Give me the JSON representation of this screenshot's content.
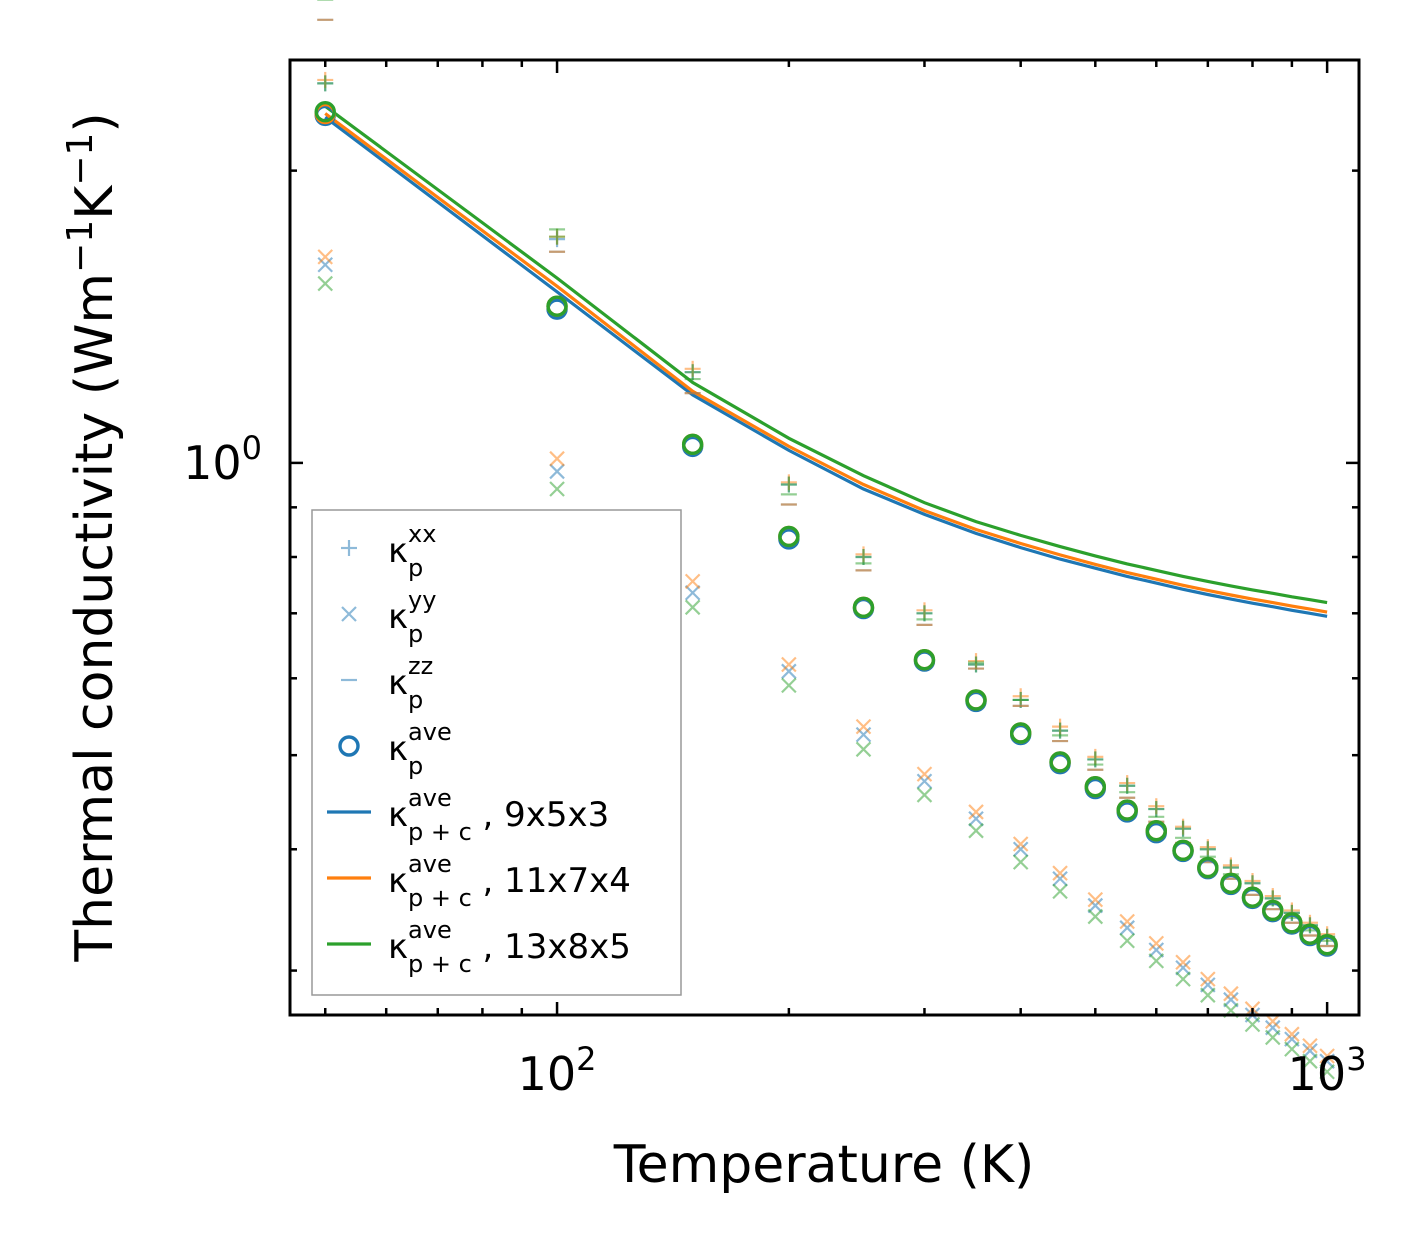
{
  "chart_data": {
    "type": "scatter",
    "scale": {
      "x": "log",
      "y": "log"
    },
    "xlim": [
      45,
      1100
    ],
    "ylim": [
      0.27,
      2.6
    ],
    "xlabel": "Temperature (K)",
    "ylabel_text": "Thermal conductivity (Wm",
    "ylabel_sup1": "−1",
    "ylabel_mid": "K",
    "ylabel_sup2": "−1",
    "ylabel_close": ")",
    "x_ticks": [
      {
        "base": "10",
        "exp": "2",
        "value": 100
      },
      {
        "base": "10",
        "exp": "3",
        "value": 1000
      }
    ],
    "y_ticks": [
      {
        "base": "10",
        "exp": "0",
        "value": 1
      }
    ],
    "colors": {
      "blue": "#1f77b4",
      "orange": "#ff7f0e",
      "green": "#2ca02c"
    },
    "x": [
      50,
      100,
      150,
      200,
      250,
      300,
      350,
      400,
      450,
      500,
      550,
      600,
      650,
      700,
      750,
      800,
      850,
      900,
      950,
      1000
    ],
    "point_series": [
      {
        "kind": "xx",
        "color": "blue",
        "values": [
          2.46,
          1.7,
          1.24,
          0.95,
          0.8,
          0.7,
          0.62,
          0.57,
          0.53,
          0.495,
          0.465,
          0.44,
          0.42,
          0.4,
          0.383,
          0.369,
          0.356,
          0.344,
          0.334,
          0.325
        ]
      },
      {
        "kind": "xx",
        "color": "orange",
        "values": [
          2.48,
          1.71,
          1.25,
          0.955,
          0.805,
          0.705,
          0.625,
          0.575,
          0.535,
          0.498,
          0.468,
          0.443,
          0.422,
          0.402,
          0.385,
          0.371,
          0.358,
          0.346,
          0.336,
          0.327
        ]
      },
      {
        "kind": "xx",
        "color": "green",
        "values": [
          2.46,
          1.71,
          1.24,
          0.95,
          0.8,
          0.7,
          0.62,
          0.57,
          0.53,
          0.495,
          0.465,
          0.44,
          0.42,
          0.4,
          0.383,
          0.369,
          0.356,
          0.344,
          0.334,
          0.325
        ]
      },
      {
        "kind": "yy",
        "color": "blue",
        "values": [
          1.6,
          0.98,
          0.735,
          0.61,
          0.525,
          0.47,
          0.43,
          0.4,
          0.373,
          0.35,
          0.332,
          0.315,
          0.302,
          0.29,
          0.28,
          0.27,
          0.262,
          0.255,
          0.248,
          0.242
        ]
      },
      {
        "kind": "yy",
        "color": "orange",
        "values": [
          1.63,
          1.01,
          0.755,
          0.62,
          0.535,
          0.478,
          0.437,
          0.405,
          0.378,
          0.355,
          0.337,
          0.32,
          0.306,
          0.294,
          0.284,
          0.274,
          0.266,
          0.258,
          0.251,
          0.245
        ]
      },
      {
        "kind": "yy",
        "color": "green",
        "values": [
          1.53,
          0.94,
          0.71,
          0.59,
          0.507,
          0.455,
          0.418,
          0.388,
          0.362,
          0.341,
          0.322,
          0.307,
          0.294,
          0.283,
          0.273,
          0.264,
          0.256,
          0.249,
          0.242,
          0.236
        ]
      },
      {
        "kind": "zz",
        "color": "blue",
        "values": [
          2.86,
          1.65,
          1.18,
          0.906,
          0.775,
          0.681,
          0.614,
          0.562,
          0.517,
          0.483,
          0.452,
          0.427,
          0.406,
          0.388,
          0.373,
          0.359,
          0.347,
          0.336,
          0.326,
          0.318
        ]
      },
      {
        "kind": "zz",
        "color": "orange",
        "values": [
          2.86,
          1.65,
          1.18,
          0.906,
          0.775,
          0.681,
          0.614,
          0.562,
          0.517,
          0.483,
          0.452,
          0.427,
          0.406,
          0.388,
          0.373,
          0.359,
          0.347,
          0.336,
          0.326,
          0.318
        ]
      },
      {
        "kind": "zz",
        "color": "green",
        "values": [
          3.0,
          1.74,
          1.22,
          0.928,
          0.788,
          0.69,
          0.623,
          0.57,
          0.524,
          0.489,
          0.458,
          0.432,
          0.411,
          0.393,
          0.377,
          0.363,
          0.351,
          0.34,
          0.33,
          0.322
        ]
      },
      {
        "kind": "ave",
        "color": "blue",
        "values": [
          2.28,
          1.44,
          1.04,
          0.835,
          0.708,
          0.625,
          0.568,
          0.525,
          0.49,
          0.462,
          0.437,
          0.416,
          0.398,
          0.382,
          0.368,
          0.356,
          0.345,
          0.335,
          0.326,
          0.318
        ]
      },
      {
        "kind": "ave",
        "color": "orange",
        "values": [
          2.29,
          1.45,
          1.045,
          0.84,
          0.71,
          0.627,
          0.57,
          0.527,
          0.492,
          0.464,
          0.439,
          0.418,
          0.399,
          0.383,
          0.369,
          0.357,
          0.346,
          0.336,
          0.327,
          0.319
        ]
      },
      {
        "kind": "ave",
        "color": "green",
        "values": [
          2.3,
          1.45,
          1.045,
          0.84,
          0.71,
          0.627,
          0.57,
          0.527,
          0.492,
          0.464,
          0.439,
          0.418,
          0.399,
          0.383,
          0.369,
          0.357,
          0.346,
          0.336,
          0.327,
          0.319
        ]
      }
    ],
    "line_series": [
      {
        "name": "9x5x3",
        "color": "blue",
        "values": [
          2.27,
          1.5,
          1.175,
          1.03,
          0.94,
          0.885,
          0.846,
          0.818,
          0.796,
          0.779,
          0.764,
          0.752,
          0.741,
          0.732,
          0.724,
          0.717,
          0.711,
          0.705,
          0.7,
          0.695
        ]
      },
      {
        "name": "11x7x4",
        "color": "orange",
        "values": [
          2.29,
          1.52,
          1.185,
          1.04,
          0.95,
          0.893,
          0.854,
          0.826,
          0.804,
          0.786,
          0.771,
          0.759,
          0.748,
          0.739,
          0.731,
          0.724,
          0.718,
          0.712,
          0.707,
          0.702
        ]
      },
      {
        "name": "13x8x5",
        "color": "green",
        "values": [
          2.33,
          1.55,
          1.21,
          1.06,
          0.97,
          0.91,
          0.87,
          0.842,
          0.82,
          0.802,
          0.787,
          0.775,
          0.764,
          0.755,
          0.747,
          0.74,
          0.734,
          0.728,
          0.723,
          0.718
        ]
      }
    ],
    "legend": {
      "position": "lower-left",
      "entries": [
        {
          "marker": "plus",
          "color": "blue",
          "base": "κ",
          "sub": "p",
          "sup": "xx",
          "suffix": ""
        },
        {
          "marker": "cross",
          "color": "blue",
          "base": "κ",
          "sub": "p",
          "sup": "yy",
          "suffix": ""
        },
        {
          "marker": "dash",
          "color": "blue",
          "base": "κ",
          "sub": "p",
          "sup": "zz",
          "suffix": ""
        },
        {
          "marker": "circle",
          "color": "blue",
          "base": "κ",
          "sub": "p",
          "sup": "ave",
          "suffix": ""
        },
        {
          "marker": "line",
          "color": "blue",
          "base": "κ",
          "sub": "p + c",
          "sup": "ave",
          "suffix": ", 9x5x3"
        },
        {
          "marker": "line",
          "color": "orange",
          "base": "κ",
          "sub": "p + c",
          "sup": "ave",
          "suffix": ", 11x7x4"
        },
        {
          "marker": "line",
          "color": "green",
          "base": "κ",
          "sub": "p + c",
          "sup": "ave",
          "suffix": ", 13x8x5"
        }
      ]
    }
  }
}
